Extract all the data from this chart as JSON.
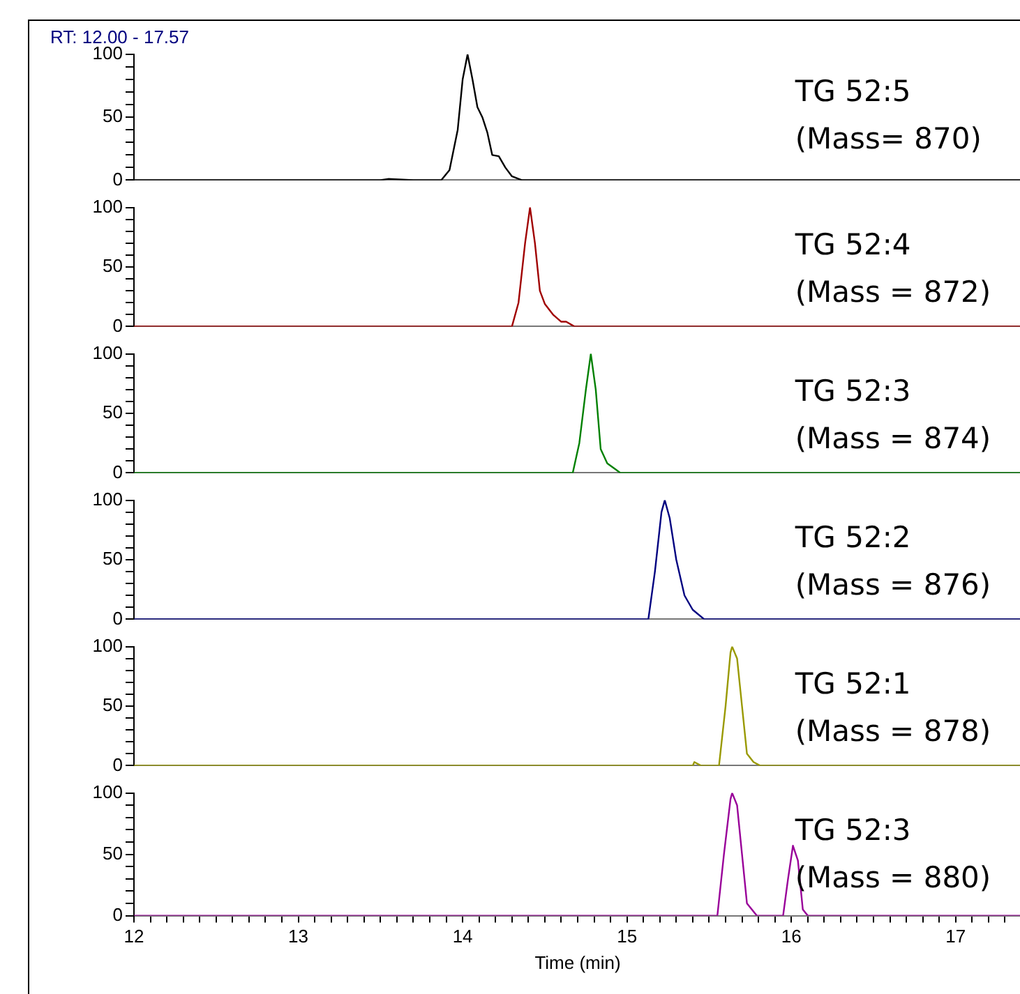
{
  "chart_data": [
    {
      "type": "line",
      "title": "RT: 12.00 - 17.57",
      "color": "#000000",
      "annotations": [
        "TG 52:5",
        "(Mass= 870)"
      ],
      "xlim": [
        12,
        17.4
      ],
      "ylim": [
        0,
        100
      ],
      "tick_labels": "y",
      "yticks": [
        0,
        {
          "value": 10,
          "label": null
        },
        {
          "value": 20,
          "label": null
        },
        {
          "value": 30,
          "label": null
        },
        {
          "value": 40,
          "label": null
        },
        50,
        {
          "value": 60,
          "label": null
        },
        {
          "value": 70,
          "label": null
        },
        {
          "value": 80,
          "label": null
        },
        {
          "value": 90,
          "label": null
        },
        100
      ],
      "x": [
        12,
        13.5,
        13.55,
        13.7,
        13.87,
        13.92,
        13.97,
        14.0,
        14.03,
        14.06,
        14.09,
        14.12,
        14.15,
        14.18,
        14.22,
        14.26,
        14.3,
        14.36,
        17.4
      ],
      "values": [
        0,
        0,
        1,
        0,
        0,
        8,
        40,
        80,
        100,
        80,
        58,
        50,
        38,
        20,
        19,
        10,
        3,
        0,
        0
      ]
    },
    {
      "type": "line",
      "color": "#a00000",
      "annotations": [
        "TG 52:4",
        "(Mass = 872)"
      ],
      "xlim": [
        12,
        17.4
      ],
      "ylim": [
        0,
        100
      ],
      "tick_labels": "y",
      "yticks": [
        0,
        {
          "value": 10,
          "label": null
        },
        {
          "value": 20,
          "label": null
        },
        {
          "value": 30,
          "label": null
        },
        {
          "value": 40,
          "label": null
        },
        50,
        {
          "value": 60,
          "label": null
        },
        {
          "value": 70,
          "label": null
        },
        {
          "value": 80,
          "label": null
        },
        {
          "value": 90,
          "label": null
        },
        100
      ],
      "x": [
        12,
        14.3,
        14.34,
        14.38,
        14.41,
        14.44,
        14.47,
        14.5,
        14.55,
        14.6,
        14.63,
        14.68,
        17.4
      ],
      "values": [
        0,
        0,
        20,
        70,
        100,
        70,
        30,
        19,
        10,
        4,
        4,
        0,
        0
      ]
    },
    {
      "type": "line",
      "color": "#008000",
      "annotations": [
        "TG 52:3",
        "(Mass = 874)"
      ],
      "xlim": [
        12,
        17.4
      ],
      "ylim": [
        0,
        100
      ],
      "tick_labels": "y",
      "yticks": [
        0,
        {
          "value": 10,
          "label": null
        },
        {
          "value": 20,
          "label": null
        },
        {
          "value": 30,
          "label": null
        },
        {
          "value": 40,
          "label": null
        },
        50,
        {
          "value": 60,
          "label": null
        },
        {
          "value": 70,
          "label": null
        },
        {
          "value": 80,
          "label": null
        },
        {
          "value": 90,
          "label": null
        },
        100
      ],
      "x": [
        12,
        14.67,
        14.71,
        14.75,
        14.78,
        14.81,
        14.84,
        14.88,
        14.93,
        14.96,
        17.4
      ],
      "values": [
        0,
        0,
        25,
        70,
        100,
        70,
        20,
        8,
        3,
        0,
        0
      ]
    },
    {
      "type": "line",
      "color": "#000080",
      "annotations": [
        "TG 52:2",
        "(Mass = 876)"
      ],
      "xlim": [
        12,
        17.4
      ],
      "ylim": [
        0,
        100
      ],
      "tick_labels": "y",
      "yticks": [
        0,
        {
          "value": 10,
          "label": null
        },
        {
          "value": 20,
          "label": null
        },
        {
          "value": 30,
          "label": null
        },
        {
          "value": 40,
          "label": null
        },
        50,
        {
          "value": 60,
          "label": null
        },
        {
          "value": 70,
          "label": null
        },
        {
          "value": 80,
          "label": null
        },
        {
          "value": 90,
          "label": null
        },
        100
      ],
      "x": [
        12,
        15.13,
        15.17,
        15.21,
        15.23,
        15.26,
        15.3,
        15.35,
        15.4,
        15.47,
        17.4
      ],
      "values": [
        0,
        0,
        40,
        90,
        100,
        85,
        50,
        20,
        8,
        0,
        0
      ]
    },
    {
      "type": "line",
      "color": "#999900",
      "annotations": [
        "TG 52:1",
        "(Mass = 878)"
      ],
      "xlim": [
        12,
        17.4
      ],
      "ylim": [
        0,
        100
      ],
      "tick_labels": "y",
      "yticks": [
        0,
        {
          "value": 10,
          "label": null
        },
        {
          "value": 20,
          "label": null
        },
        {
          "value": 30,
          "label": null
        },
        {
          "value": 40,
          "label": null
        },
        50,
        {
          "value": 60,
          "label": null
        },
        {
          "value": 70,
          "label": null
        },
        {
          "value": 80,
          "label": null
        },
        {
          "value": 90,
          "label": null
        },
        100
      ],
      "x": [
        12,
        15.4,
        15.41,
        15.45,
        15.56,
        15.6,
        15.63,
        15.64,
        15.67,
        15.7,
        15.73,
        15.77,
        15.81,
        17.4
      ],
      "values": [
        0,
        0,
        3,
        0,
        0,
        50,
        95,
        100,
        90,
        50,
        10,
        3,
        0,
        0
      ]
    },
    {
      "type": "line",
      "color": "#990099",
      "annotations": [
        "TG 52:3",
        "(Mass = 880)"
      ],
      "xlabel": "Time (min)",
      "xlim": [
        12,
        17.4
      ],
      "ylim": [
        0,
        100
      ],
      "yticks": [
        0,
        {
          "value": 10,
          "label": null
        },
        {
          "value": 20,
          "label": null
        },
        {
          "value": 30,
          "label": null
        },
        {
          "value": 40,
          "label": null
        },
        50,
        {
          "value": 60,
          "label": null
        },
        {
          "value": 70,
          "label": null
        },
        {
          "value": 80,
          "label": null
        },
        {
          "value": 90,
          "label": null
        },
        100
      ],
      "xticks": [
        12,
        {
          "value": 12.1,
          "label": null
        },
        {
          "value": 12.2,
          "label": null
        },
        {
          "value": 12.3,
          "label": null
        },
        {
          "value": 12.4,
          "label": null
        },
        {
          "value": 12.5,
          "label": null
        },
        {
          "value": 12.6,
          "label": null
        },
        {
          "value": 12.7,
          "label": null
        },
        {
          "value": 12.8,
          "label": null
        },
        {
          "value": 12.9,
          "label": null
        },
        13,
        {
          "value": 13.1,
          "label": null
        },
        {
          "value": 13.2,
          "label": null
        },
        {
          "value": 13.3,
          "label": null
        },
        {
          "value": 13.4,
          "label": null
        },
        {
          "value": 13.5,
          "label": null
        },
        {
          "value": 13.6,
          "label": null
        },
        {
          "value": 13.7,
          "label": null
        },
        {
          "value": 13.8,
          "label": null
        },
        {
          "value": 13.9,
          "label": null
        },
        14,
        {
          "value": 14.1,
          "label": null
        },
        {
          "value": 14.2,
          "label": null
        },
        {
          "value": 14.3,
          "label": null
        },
        {
          "value": 14.4,
          "label": null
        },
        {
          "value": 14.5,
          "label": null
        },
        {
          "value": 14.6,
          "label": null
        },
        {
          "value": 14.7,
          "label": null
        },
        {
          "value": 14.8,
          "label": null
        },
        {
          "value": 14.9,
          "label": null
        },
        15,
        {
          "value": 15.1,
          "label": null
        },
        {
          "value": 15.2,
          "label": null
        },
        {
          "value": 15.3,
          "label": null
        },
        {
          "value": 15.4,
          "label": null
        },
        {
          "value": 15.5,
          "label": null
        },
        {
          "value": 15.6,
          "label": null
        },
        {
          "value": 15.7,
          "label": null
        },
        {
          "value": 15.8,
          "label": null
        },
        {
          "value": 15.9,
          "label": null
        },
        16,
        {
          "value": 16.1,
          "label": null
        },
        {
          "value": 16.2,
          "label": null
        },
        {
          "value": 16.3,
          "label": null
        },
        {
          "value": 16.4,
          "label": null
        },
        {
          "value": 16.5,
          "label": null
        },
        {
          "value": 16.6,
          "label": null
        },
        {
          "value": 16.7,
          "label": null
        },
        {
          "value": 16.8,
          "label": null
        },
        {
          "value": 16.9,
          "label": null
        },
        17,
        {
          "value": 17.1,
          "label": null
        },
        {
          "value": 17.2,
          "label": null
        },
        {
          "value": 17.3,
          "label": null
        }
      ],
      "x": [
        12,
        15.55,
        15.59,
        15.63,
        15.64,
        15.67,
        15.7,
        15.73,
        15.79,
        15.95,
        15.98,
        16.01,
        16.04,
        16.07,
        16.1,
        17.4
      ],
      "values": [
        0,
        0,
        50,
        95,
        100,
        90,
        50,
        10,
        0,
        0,
        30,
        57,
        45,
        5,
        0,
        0
      ]
    }
  ]
}
